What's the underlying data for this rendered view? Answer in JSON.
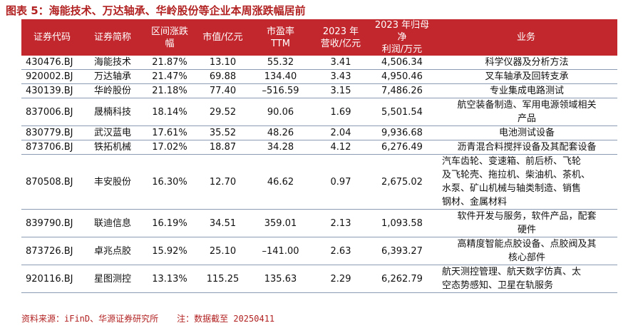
{
  "title": "图表 5：海能技术、万达轴承、华岭股份等企业本周涨跌幅居前",
  "headers": [
    "证券代码",
    "证券简称",
    "区间涨跌幅",
    "市值/亿元",
    "市盈率TTM",
    "2023年营收/亿元",
    "2023年归母净利润/万元",
    "业务"
  ],
  "header_lines": [
    [
      "证券代码"
    ],
    [
      "证券简称"
    ],
    [
      "区间涨跌",
      "幅"
    ],
    [
      "市值/亿元"
    ],
    [
      "市盈率",
      "TTM"
    ],
    [
      "2023 年",
      "营收/亿元"
    ],
    [
      "2023 年归母净",
      "利润/万元"
    ],
    [
      "业务"
    ]
  ],
  "rows": [
    {
      "code": "430476.BJ",
      "name": "海能技术",
      "change": "21.87%",
      "mcap": "13.10",
      "pe": "55.32",
      "rev": "3.41",
      "profit": "4,506.34",
      "biz": [
        "科学仪器及分析方法"
      ],
      "biz_align": "center"
    },
    {
      "code": "920002.BJ",
      "name": "万达轴承",
      "change": "21.47%",
      "mcap": "69.88",
      "pe": "134.40",
      "rev": "3.43",
      "profit": "4,950.46",
      "biz": [
        "叉车轴承及回转支承"
      ],
      "biz_align": "center"
    },
    {
      "code": "430139.BJ",
      "name": "华岭股份",
      "change": "21.18%",
      "mcap": "77.40",
      "pe": "–516.59",
      "rev": "3.15",
      "profit": "7,486.26",
      "biz": [
        "专业集成电路测试"
      ],
      "biz_align": "center"
    },
    {
      "code": "837006.BJ",
      "name": "晟楠科技",
      "change": "18.14%",
      "mcap": "29.52",
      "pe": "90.06",
      "rev": "1.69",
      "profit": "5,501.54",
      "biz": [
        "航空装备制造、军用电源领域相关",
        "产品"
      ],
      "biz_align": "center"
    },
    {
      "code": "830779.BJ",
      "name": "武汉蓝电",
      "change": "17.61%",
      "mcap": "35.52",
      "pe": "48.26",
      "rev": "2.04",
      "profit": "9,936.68",
      "biz": [
        "电池测试设备"
      ],
      "biz_align": "center"
    },
    {
      "code": "873706.BJ",
      "name": "铁拓机械",
      "change": "17.02%",
      "mcap": "18.87",
      "pe": "34.28",
      "rev": "4.12",
      "profit": "6,276.49",
      "biz": [
        "沥青混合料搅拌设备及其配套设备"
      ],
      "biz_align": "center"
    },
    {
      "code": "870508.BJ",
      "name": "丰安股份",
      "change": "16.30%",
      "mcap": "12.70",
      "pe": "46.62",
      "rev": "0.97",
      "profit": "2,675.02",
      "biz": [
        "汽车齿轮、变速箱、前后桥、飞轮",
        "及飞轮壳、拖拉机、柴油机、茶机、",
        "水泵、矿山机械与轴类制造、销售",
        "钢材、金属材料"
      ],
      "biz_align": "left"
    },
    {
      "code": "839790.BJ",
      "name": "联迪信息",
      "change": "16.19%",
      "mcap": "34.51",
      "pe": "359.01",
      "rev": "2.13",
      "profit": "1,093.58",
      "biz": [
        "软件开发与服务，软件产品，配套",
        "硬件"
      ],
      "biz_align": "center"
    },
    {
      "code": "873726.BJ",
      "name": "卓兆点胶",
      "change": "15.92%",
      "mcap": "25.10",
      "pe": "–141.00",
      "rev": "2.63",
      "profit": "6,393.27",
      "biz": [
        "高精度智能点胶设备、点胶阀及其",
        "核心部件"
      ],
      "biz_align": "center"
    },
    {
      "code": "920116.BJ",
      "name": "星图测控",
      "change": "13.13%",
      "mcap": "115.25",
      "pe": "135.63",
      "rev": "2.29",
      "profit": "6,262.79",
      "biz": [
        "航天测控管理、航天数字仿真、太",
        "空态势感知、卫星在轨服务"
      ],
      "biz_align": "left"
    }
  ],
  "source": "资料来源：iFinD、华源证券研究所",
  "note": "注：数据截至 20250411"
}
